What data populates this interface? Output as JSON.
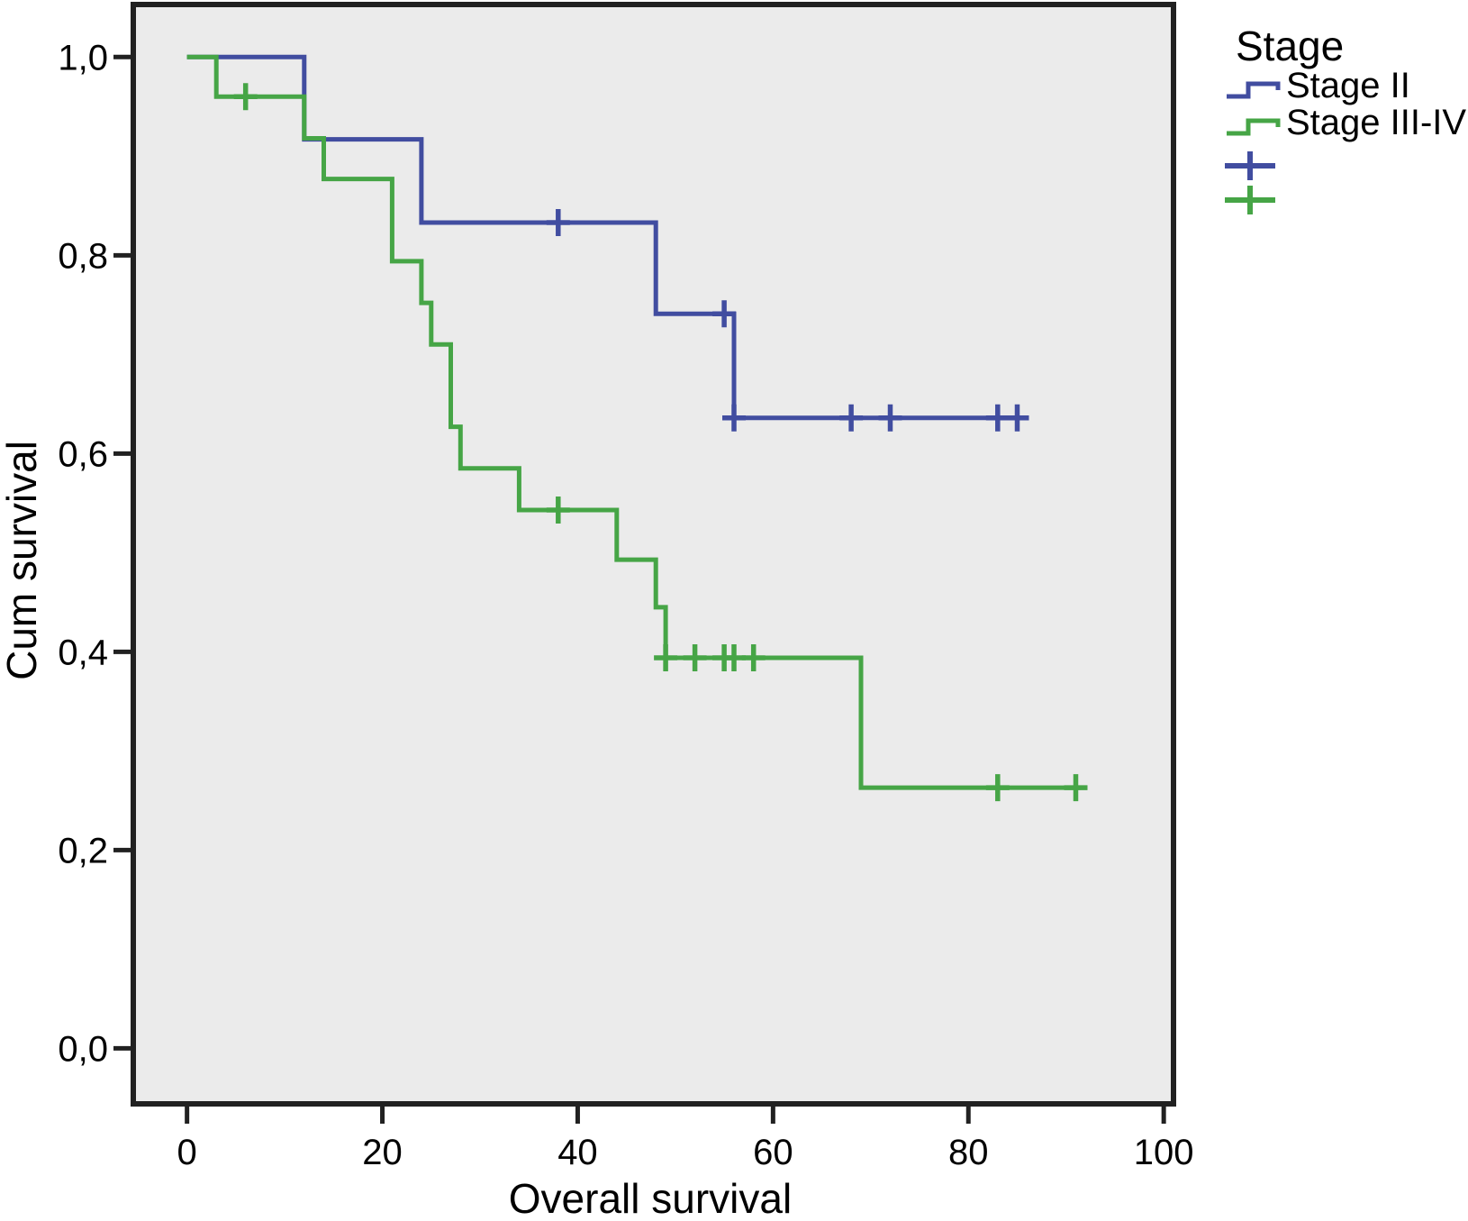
{
  "figure": {
    "x_axis": {
      "title": "Overall survival",
      "ticks": [
        {
          "v": 0,
          "label": "0"
        },
        {
          "v": 20,
          "label": "20"
        },
        {
          "v": 40,
          "label": "40"
        },
        {
          "v": 60,
          "label": "60"
        },
        {
          "v": 80,
          "label": "80"
        },
        {
          "v": 100,
          "label": "100"
        }
      ]
    },
    "y_axis": {
      "title": "Cum survival",
      "ticks": [
        {
          "v": 0.0,
          "label": "0,0"
        },
        {
          "v": 0.2,
          "label": "0,2"
        },
        {
          "v": 0.4,
          "label": "0,4"
        },
        {
          "v": 0.6,
          "label": "0,6"
        },
        {
          "v": 0.8,
          "label": "0,8"
        },
        {
          "v": 1.0,
          "label": "1,0"
        }
      ]
    }
  },
  "legend": {
    "title": "Stage",
    "items": [
      {
        "label": "Stage II",
        "color": "#414DA0",
        "symbol": "step-line"
      },
      {
        "label": "Stage III-IV",
        "color": "#46A546",
        "symbol": "step-line"
      },
      {
        "label": "",
        "color": "#414DA0",
        "symbol": "censor-plus"
      },
      {
        "label": "",
        "color": "#46A546",
        "symbol": "censor-plus"
      }
    ]
  },
  "colors": {
    "stage_ii": "#414DA0",
    "stage_iii_iv": "#46A546",
    "plot_background": "#EBEBEB",
    "frame": "#212121",
    "text": "#000000"
  },
  "chart_data": {
    "type": "line",
    "subtype": "kaplan-meier-step",
    "title": "",
    "xlabel": "Overall survival",
    "ylabel": "Cum survival",
    "xlim": [
      -5.5,
      101
    ],
    "ylim": [
      -0.056,
      1.053
    ],
    "x_ticks": [
      0,
      20,
      40,
      60,
      80,
      100
    ],
    "y_ticks": [
      0.0,
      0.2,
      0.4,
      0.6,
      0.8,
      1.0
    ],
    "grid": false,
    "legend_position": "outside-top-right",
    "series": [
      {
        "name": "Stage II",
        "color": "#414DA0",
        "steps": [
          [
            0,
            1.0
          ],
          [
            12,
            0.917
          ],
          [
            24,
            0.833
          ],
          [
            48,
            0.741
          ],
          [
            56,
            0.636
          ]
        ],
        "end_time": 86,
        "censored": [
          [
            38,
            0.833
          ],
          [
            55,
            0.741
          ],
          [
            56,
            0.636
          ],
          [
            68,
            0.636
          ],
          [
            72,
            0.636
          ],
          [
            83,
            0.636
          ],
          [
            85,
            0.636
          ]
        ]
      },
      {
        "name": "Stage III-IV",
        "color": "#46A546",
        "steps": [
          [
            0,
            1.0
          ],
          [
            3,
            0.96
          ],
          [
            12,
            0.918
          ],
          [
            14,
            0.877
          ],
          [
            21,
            0.794
          ],
          [
            24,
            0.752
          ],
          [
            25,
            0.71
          ],
          [
            27,
            0.627
          ],
          [
            28,
            0.585
          ],
          [
            34,
            0.543
          ],
          [
            44,
            0.493
          ],
          [
            48,
            0.445
          ],
          [
            49,
            0.394
          ],
          [
            69,
            0.263
          ]
        ],
        "end_time": 91.5,
        "censored": [
          [
            6,
            0.96
          ],
          [
            38,
            0.543
          ],
          [
            49,
            0.394
          ],
          [
            52,
            0.394
          ],
          [
            55,
            0.394
          ],
          [
            56,
            0.394
          ],
          [
            58,
            0.394
          ],
          [
            83,
            0.263
          ],
          [
            91,
            0.263
          ]
        ]
      }
    ]
  }
}
